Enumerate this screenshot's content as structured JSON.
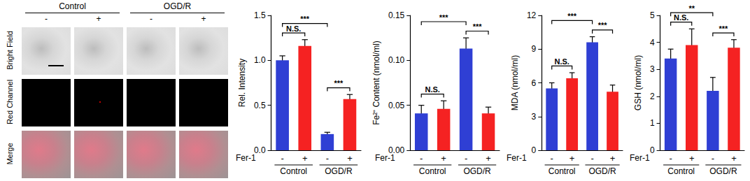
{
  "image_panel": {
    "groups": [
      "Control",
      "OGD/R"
    ],
    "treatment": [
      "-",
      "+",
      "-",
      "+"
    ],
    "rows": [
      "Bright Field",
      "Red Channel",
      "Merge"
    ]
  },
  "chart_data": [
    {
      "type": "bar",
      "y_label": "Rel. Intensity",
      "x_label": "Fer-1",
      "categories": [
        "-",
        "+",
        "-",
        "+"
      ],
      "groups": [
        "Control",
        "OGD/R"
      ],
      "values": [
        1.0,
        1.16,
        0.18,
        0.57
      ],
      "errors": [
        0.05,
        0.07,
        0.02,
        0.05
      ],
      "colors": [
        "#2f3fd4",
        "#f52222",
        "#2f3fd4",
        "#f52222"
      ],
      "ylim": [
        0,
        1.5
      ],
      "yticks": [
        {
          "value": 0,
          "label": "0.0"
        },
        0.5,
        {
          "value": 1,
          "label": "1.0"
        },
        1.5
      ],
      "grid": false,
      "comparisons": [
        {
          "bars": [
            0,
            1
          ],
          "label": "N.S."
        },
        {
          "bars": [
            2,
            3
          ],
          "label": "***"
        },
        {
          "bars": [
            0,
            2
          ],
          "label": "***"
        }
      ]
    },
    {
      "type": "bar",
      "y_label": "Fe²⁺ Content (nmol/ml)",
      "x_label": "Fer-1",
      "categories": [
        "-",
        "+",
        "-",
        "+"
      ],
      "groups": [
        "Control",
        "OGD/R"
      ],
      "values": [
        0.041,
        0.046,
        0.113,
        0.041
      ],
      "errors": [
        0.009,
        0.009,
        0.012,
        0.007
      ],
      "colors": [
        "#2f3fd4",
        "#f52222",
        "#2f3fd4",
        "#f52222"
      ],
      "ylim": [
        0,
        0.15
      ],
      "yticks": [
        {
          "value": 0,
          "label": "0.00"
        },
        0.05,
        {
          "value": 0.1,
          "label": "0.10"
        },
        0.15
      ],
      "grid": false,
      "comparisons": [
        {
          "bars": [
            0,
            1
          ],
          "label": "N.S."
        },
        {
          "bars": [
            2,
            3
          ],
          "label": "***"
        },
        {
          "bars": [
            0,
            2
          ],
          "label": "***"
        }
      ]
    },
    {
      "type": "bar",
      "y_label": "MDA (nmol/ml)",
      "x_label": "Fer-1",
      "categories": [
        "-",
        "+",
        "-",
        "+"
      ],
      "groups": [
        "Control",
        "OGD/R"
      ],
      "values": [
        5.5,
        6.4,
        9.6,
        5.2
      ],
      "errors": [
        0.5,
        0.5,
        0.5,
        0.6
      ],
      "colors": [
        "#2f3fd4",
        "#f52222",
        "#2f3fd4",
        "#f52222"
      ],
      "ylim": [
        0,
        12
      ],
      "yticks": [
        0,
        3,
        6,
        9,
        12
      ],
      "grid": false,
      "comparisons": [
        {
          "bars": [
            0,
            1
          ],
          "label": "N.S."
        },
        {
          "bars": [
            2,
            3
          ],
          "label": "***"
        },
        {
          "bars": [
            0,
            2
          ],
          "label": "***"
        }
      ]
    },
    {
      "type": "bar",
      "y_label": "GSH (nmol/ml)",
      "x_label": "Fer-1",
      "categories": [
        "-",
        "+",
        "-",
        "+"
      ],
      "groups": [
        "Control",
        "OGD/R"
      ],
      "values": [
        3.4,
        3.9,
        2.2,
        3.8
      ],
      "errors": [
        0.35,
        0.6,
        0.5,
        0.3
      ],
      "colors": [
        "#2f3fd4",
        "#f52222",
        "#2f3fd4",
        "#f52222"
      ],
      "ylim": [
        0,
        5
      ],
      "yticks": [
        0,
        1,
        2,
        3,
        4,
        5
      ],
      "grid": false,
      "comparisons": [
        {
          "bars": [
            0,
            1
          ],
          "label": "N.S."
        },
        {
          "bars": [
            2,
            3
          ],
          "label": "***"
        },
        {
          "bars": [
            0,
            2
          ],
          "label": "**"
        }
      ]
    }
  ]
}
